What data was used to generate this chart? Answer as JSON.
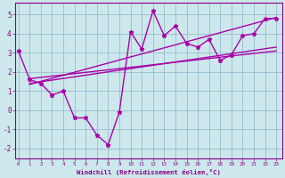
{
  "x_data": [
    0,
    1,
    2,
    3,
    4,
    5,
    6,
    7,
    8,
    9,
    10,
    11,
    12,
    13,
    14,
    15,
    16,
    17,
    18,
    19,
    20,
    21,
    22,
    23
  ],
  "y_data": [
    3.1,
    1.6,
    1.4,
    0.8,
    1.0,
    -0.4,
    -0.4,
    -1.3,
    -1.8,
    -0.1,
    4.1,
    3.2,
    5.2,
    3.9,
    4.4,
    3.5,
    3.3,
    3.7,
    2.6,
    2.9,
    3.9,
    4.0,
    4.8,
    4.8
  ],
  "trend_lines": [
    {
      "x_start": 1,
      "y_start": 1.65,
      "x_end": 23,
      "y_end": 3.1
    },
    {
      "x_start": 1,
      "y_start": 1.4,
      "x_end": 23,
      "y_end": 3.3
    },
    {
      "x_start": 1,
      "y_start": 1.35,
      "x_end": 23,
      "y_end": 4.85
    }
  ],
  "line_color": "#aa00aa",
  "marker": "*",
  "marker_size": 3.5,
  "background_color": "#cce8ec",
  "grid_color": "#99bbcc",
  "xlabel": "Windchill (Refroidissement éolien,°C)",
  "ylim": [
    -2.5,
    5.6
  ],
  "xlim": [
    -0.3,
    23.5
  ],
  "yticks": [
    -2,
    -1,
    0,
    1,
    2,
    3,
    4,
    5
  ],
  "xticks": [
    0,
    1,
    2,
    3,
    4,
    5,
    6,
    7,
    8,
    9,
    10,
    11,
    12,
    13,
    14,
    15,
    16,
    17,
    18,
    19,
    20,
    21,
    22,
    23
  ],
  "tick_color": "#880088",
  "label_color": "#880088"
}
